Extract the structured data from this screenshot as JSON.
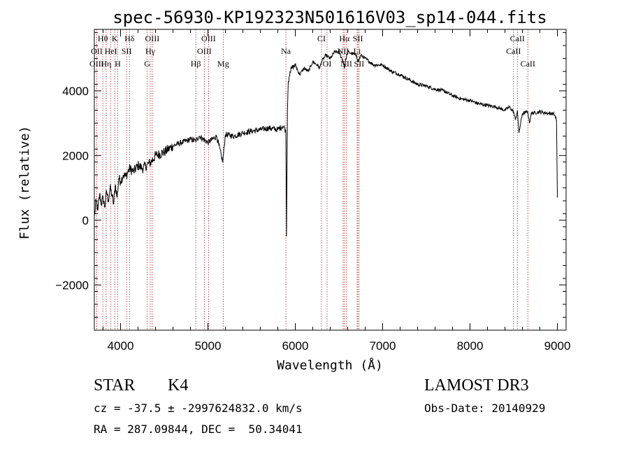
{
  "chart_data": {
    "type": "line",
    "title": "spec-56930-KP192323N501616V03_sp14-044.fits",
    "xlabel": "Wavelength (Å)",
    "ylabel": "Flux (relative)",
    "xlim": [
      3700,
      9100
    ],
    "ylim": [
      -3400,
      5900
    ],
    "xticks": [
      4000,
      5000,
      6000,
      7000,
      8000,
      9000
    ],
    "xtick_labels": [
      "4000",
      "5000",
      "6000",
      "7000",
      "8000",
      "9000"
    ],
    "yticks": [
      -2000,
      0,
      2000,
      4000
    ],
    "ytick_labels": [
      "−2000",
      "0",
      "2000",
      "4000"
    ],
    "spectrum": {
      "name": "flux",
      "x": [
        3700,
        3720,
        3740,
        3760,
        3780,
        3800,
        3820,
        3840,
        3860,
        3880,
        3900,
        3920,
        3940,
        3960,
        3980,
        4000,
        4030,
        4060,
        4100,
        4150,
        4200,
        4250,
        4300,
        4350,
        4400,
        4500,
        4600,
        4700,
        4800,
        4860,
        4900,
        5000,
        5100,
        5170,
        5200,
        5300,
        5400,
        5500,
        5600,
        5700,
        5800,
        5850,
        5880,
        5893,
        5900,
        5910,
        5920,
        5940,
        5960,
        6000,
        6050,
        6100,
        6150,
        6200,
        6250,
        6280,
        6300,
        6350,
        6400,
        6450,
        6500,
        6550,
        6563,
        6580,
        6600,
        6650,
        6700,
        6720,
        6750,
        6800,
        6900,
        7000,
        7100,
        7200,
        7300,
        7400,
        7500,
        7600,
        7700,
        7800,
        7900,
        8000,
        8100,
        8200,
        8300,
        8400,
        8450,
        8498,
        8520,
        8542,
        8560,
        8600,
        8662,
        8680,
        8700,
        8800,
        8900,
        8950,
        8970,
        8990,
        9000
      ],
      "y": [
        100,
        600,
        300,
        800,
        500,
        700,
        400,
        900,
        600,
        1000,
        800,
        500,
        1100,
        700,
        1300,
        1200,
        1400,
        1350,
        1600,
        1500,
        1700,
        1600,
        1700,
        1800,
        2000,
        2100,
        2300,
        2400,
        2500,
        2450,
        2600,
        2400,
        2600,
        1800,
        2650,
        2600,
        2700,
        2750,
        2800,
        2850,
        2800,
        2900,
        2850,
        2700,
        -500,
        3400,
        4300,
        4600,
        4700,
        4800,
        4500,
        4700,
        4600,
        4900,
        4800,
        4700,
        4900,
        5100,
        5000,
        5200,
        5200,
        4900,
        4700,
        5000,
        5200,
        5150,
        5100,
        4900,
        5100,
        5000,
        4800,
        4800,
        4600,
        4500,
        4350,
        4200,
        4150,
        4050,
        4000,
        3850,
        3750,
        3700,
        3600,
        3550,
        3500,
        3400,
        3500,
        3350,
        3100,
        3400,
        2700,
        3300,
        3350,
        3000,
        3300,
        3350,
        3300,
        3300,
        3250,
        3100,
        700
      ]
    },
    "lines": [
      {
        "label": "Hθ",
        "x": 3797,
        "row": 0
      },
      {
        "label": "K",
        "x": 3934,
        "row": 0
      },
      {
        "label": "Hδ",
        "x": 4102,
        "row": 0
      },
      {
        "label": "OIII",
        "x": 4363,
        "row": 0
      },
      {
        "label": "OIII",
        "x": 5007,
        "row": 0
      },
      {
        "label": "CI",
        "x": 6300,
        "row": 0
      },
      {
        "label": "Hα",
        "x": 6563,
        "row": 0
      },
      {
        "label": "SII",
        "x": 6717,
        "row": 0
      },
      {
        "label": "CaII",
        "x": 8542,
        "row": 0
      },
      {
        "label": "OII",
        "x": 3727,
        "row": 1
      },
      {
        "label": "HeI",
        "x": 3889,
        "row": 1
      },
      {
        "label": "SII",
        "x": 4069,
        "row": 1
      },
      {
        "label": "Hγ",
        "x": 4340,
        "row": 1
      },
      {
        "label": "OIII",
        "x": 4959,
        "row": 1
      },
      {
        "label": "Na",
        "x": 5893,
        "row": 1
      },
      {
        "label": "NII",
        "x": 6548,
        "row": 1
      },
      {
        "label": "Li",
        "x": 6708,
        "row": 1
      },
      {
        "label": "CaII",
        "x": 8498,
        "row": 1
      },
      {
        "label": "OIII",
        "x": 3727,
        "row": 2
      },
      {
        "label": "Hη",
        "x": 3835,
        "row": 2
      },
      {
        "label": "H",
        "x": 3968,
        "row": 2
      },
      {
        "label": "G",
        "x": 4305,
        "row": 2
      },
      {
        "label": "Hβ",
        "x": 4861,
        "row": 2
      },
      {
        "label": "Mg",
        "x": 5175,
        "row": 2
      },
      {
        "label": "OI",
        "x": 6364,
        "row": 2
      },
      {
        "label": "NII",
        "x": 6584,
        "row": 2
      },
      {
        "label": "SII",
        "x": 6731,
        "row": 2
      },
      {
        "label": "CaII",
        "x": 8662,
        "row": 2
      }
    ],
    "line_colors": {
      "spectrum": "#000000",
      "marker": "#b22222"
    }
  },
  "footer": {
    "object_class": "STAR",
    "subclass": "K4",
    "survey": "LAMOST DR3",
    "redshift": "cz = -37.5 ± -2997624832.0 km/s",
    "obs_date": "Obs-Date: 20140929",
    "coords": "RA = 287.09844, DEC =  50.34041"
  }
}
